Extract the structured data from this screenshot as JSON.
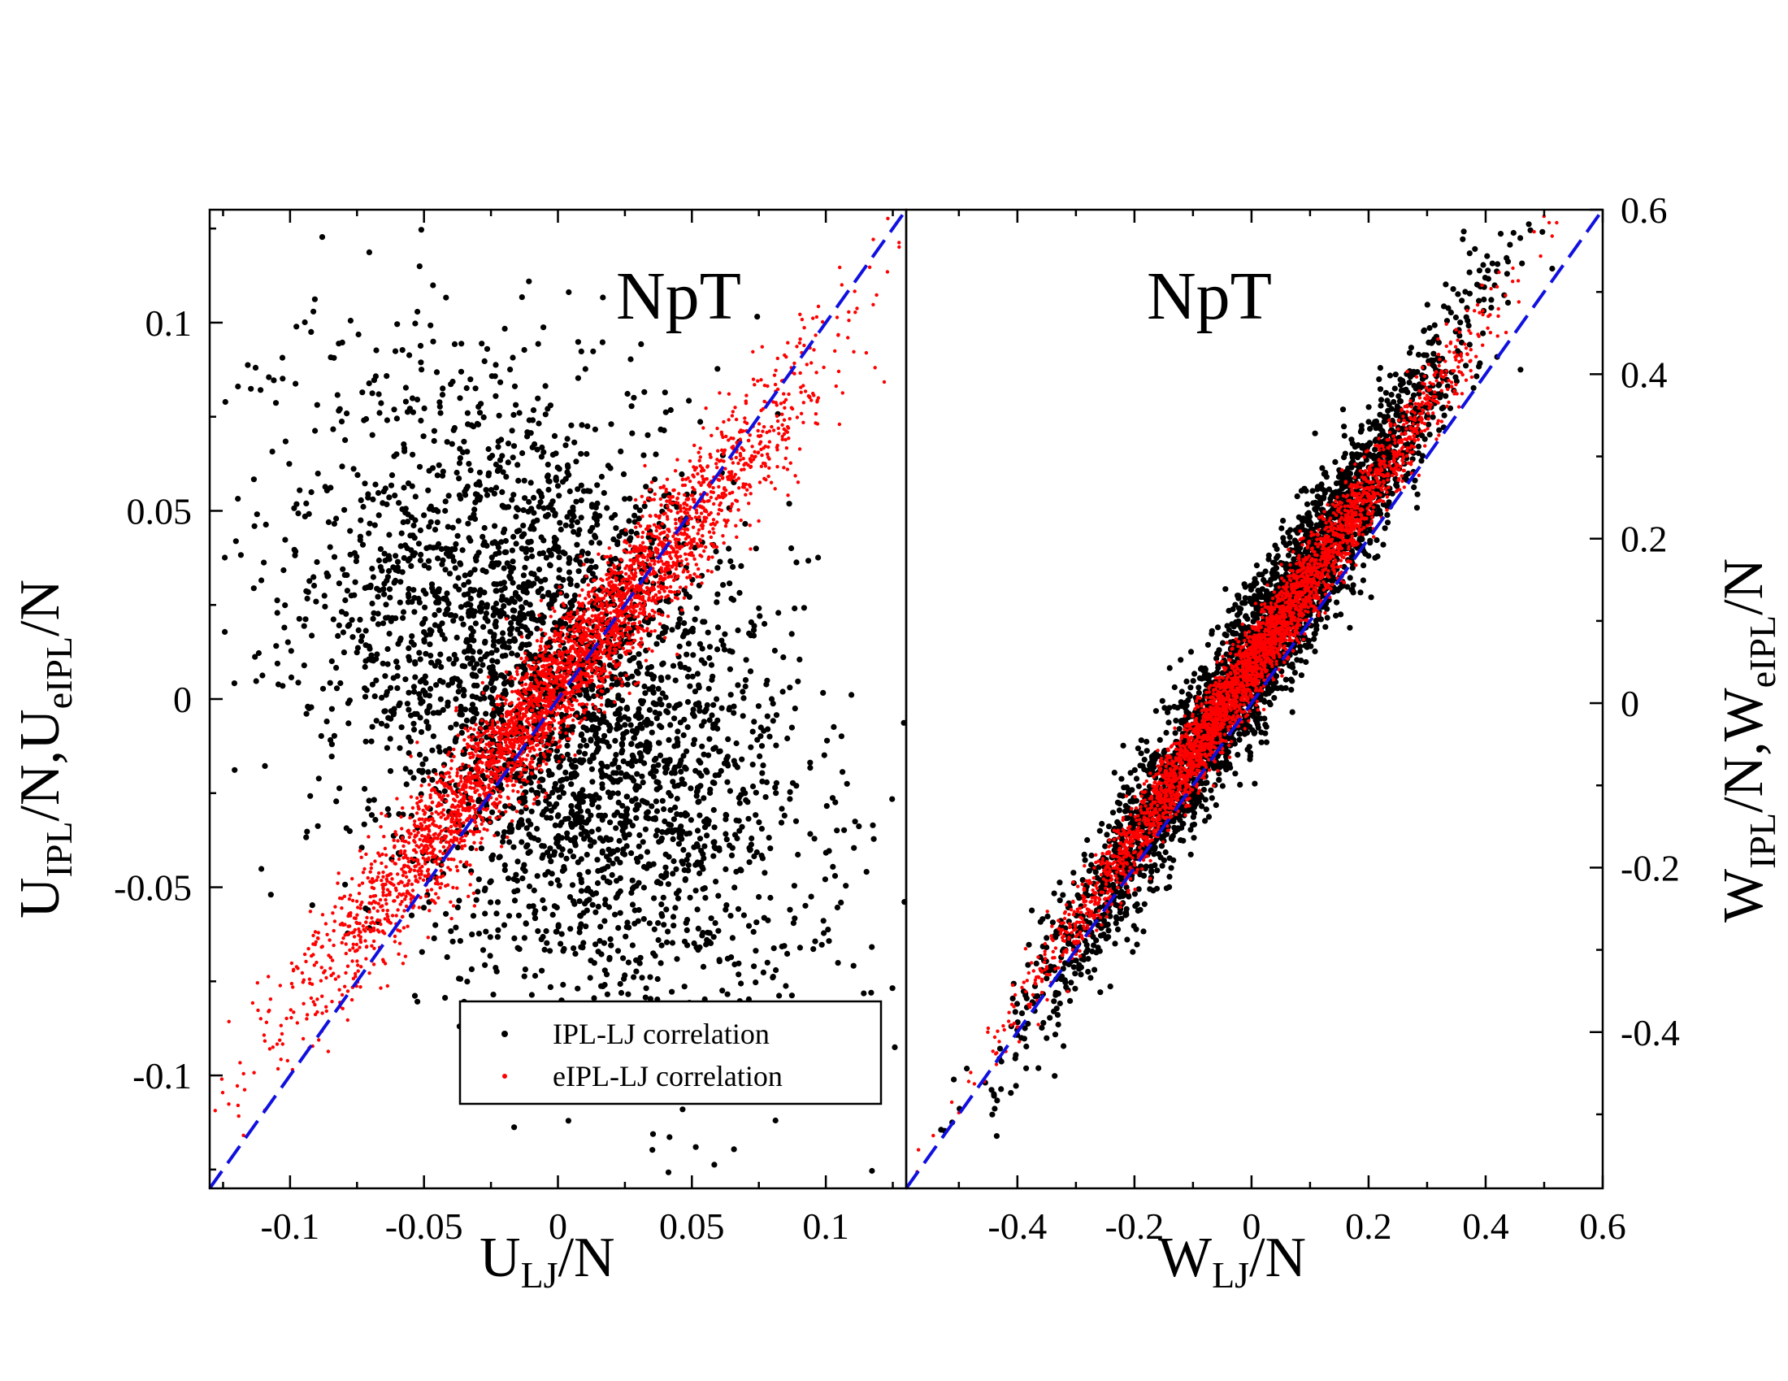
{
  "chart_data": [
    {
      "type": "scatter",
      "panel": "left",
      "title": "NpT",
      "xlabel": {
        "main": "U",
        "sub": "LJ",
        "suffix": "/N"
      },
      "ylabel": {
        "parts": [
          "U",
          "IPL",
          "/N,U",
          "eIPL",
          "/N"
        ]
      },
      "xlim": [
        -0.13,
        0.13
      ],
      "ylim": [
        -0.13,
        0.13
      ],
      "xticks": [
        -0.1,
        -0.05,
        0,
        0.05,
        0.1
      ],
      "xtick_labels": [
        "-0.1",
        "-0.05",
        "0",
        "0.05",
        "0.1"
      ],
      "yticks": [
        -0.1,
        -0.05,
        0,
        0.05,
        0.1
      ],
      "ytick_labels": [
        "-0.1",
        "-0.05",
        "0",
        "0.05",
        "0.1"
      ],
      "y_axis_side": "left",
      "reference_line": {
        "x": [
          -0.13,
          0.13
        ],
        "y": [
          -0.13,
          0.13
        ],
        "color": "#1010e0",
        "style": "dashed"
      },
      "series": [
        {
          "name": "IPL-LJ correlation",
          "color": "#000000",
          "n_points": 3500,
          "correlation": -0.42,
          "x_sd": 0.045,
          "y_sd": 0.042
        },
        {
          "name": "eIPL-LJ correlation",
          "color": "#ff0000",
          "n_points": 3500,
          "slope": 0.87,
          "intercept": 0.004,
          "scatter_sd": 0.009,
          "x_sd": 0.045
        }
      ],
      "legend": {
        "position": "bottom-right",
        "entries": [
          "IPL-LJ correlation",
          "eIPL-LJ correlation"
        ]
      }
    },
    {
      "type": "scatter",
      "panel": "right",
      "title": "NpT",
      "xlabel": {
        "main": "W",
        "sub": "LJ",
        "suffix": "/N"
      },
      "ylabel": {
        "parts": [
          "W",
          "IPL",
          "/N,W",
          "eIPL",
          "/N"
        ]
      },
      "xlim": [
        -0.59,
        0.6
      ],
      "ylim": [
        -0.59,
        0.6
      ],
      "xticks": [
        -0.4,
        -0.2,
        0,
        0.2,
        0.4,
        0.6
      ],
      "xtick_labels": [
        "-0.4",
        "-0.2",
        "0",
        "0.2",
        "0.4",
        "0.6"
      ],
      "yticks": [
        -0.4,
        -0.2,
        0,
        0.2,
        0.4,
        0.6
      ],
      "ytick_labels": [
        "-0.4",
        "-0.2",
        "0",
        "0.2",
        "0.4",
        "0.6"
      ],
      "y_axis_side": "right",
      "reference_line": {
        "x": [
          -0.59,
          0.6
        ],
        "y": [
          -0.59,
          0.6
        ],
        "color": "#1010e0",
        "style": "dashed"
      },
      "series": [
        {
          "name": "IPL-LJ correlation",
          "color": "#000000",
          "n_points": 3500,
          "slope": 1.1,
          "intercept": 0.05,
          "scatter_sd": 0.045,
          "x_sd": 0.17
        },
        {
          "name": "eIPL-LJ correlation",
          "color": "#ff0000",
          "n_points": 3500,
          "slope": 1.05,
          "intercept": 0.045,
          "scatter_sd": 0.025,
          "x_sd": 0.17
        }
      ]
    }
  ]
}
